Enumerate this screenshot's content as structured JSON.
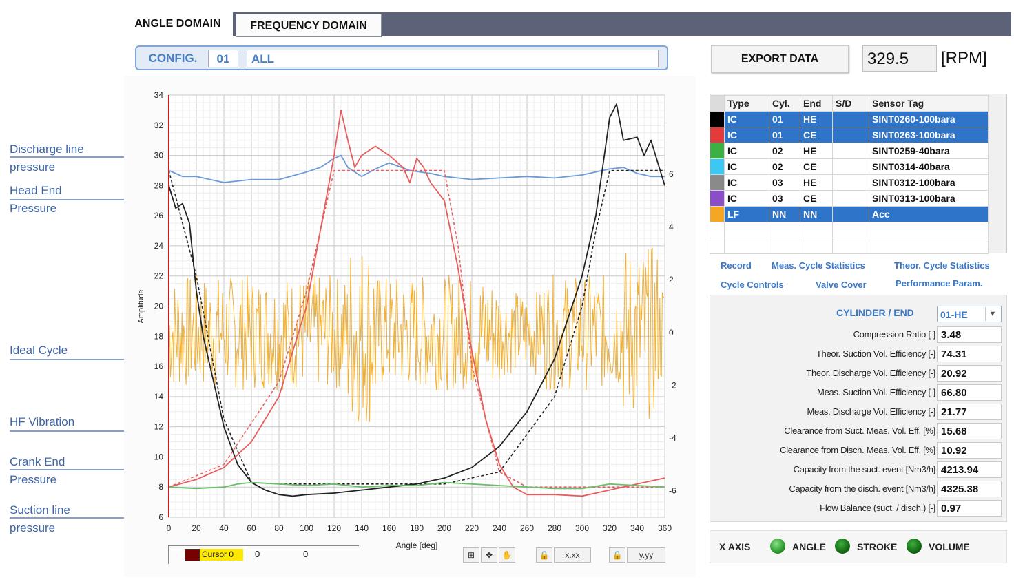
{
  "tabs": [
    {
      "label": "ANGLE DOMAIN"
    },
    {
      "label": "FREQUENCY DOMAIN"
    }
  ],
  "config": {
    "label": "CONFIG.",
    "number": "01",
    "selection": "ALL"
  },
  "export": {
    "label": "EXPORT DATA"
  },
  "rpm": {
    "value": "329.5",
    "unit": "[RPM]"
  },
  "annotations": [
    {
      "line1": "Discharge line",
      "line2": "pressure"
    },
    {
      "line1": "Head End",
      "line2": "Pressure"
    },
    {
      "line1": "Ideal Cycle",
      "line2": ""
    },
    {
      "line1": "HF Vibration",
      "line2": ""
    },
    {
      "line1": "Crank End",
      "line2": "Pressure"
    },
    {
      "line1": "Suction line",
      "line2": "pressure"
    }
  ],
  "sensor_table": {
    "headers": [
      "Type",
      "Cyl.",
      "End",
      "S/D",
      "Sensor Tag"
    ],
    "rows": [
      {
        "color": "#000000",
        "type": "IC",
        "cyl": "01",
        "end": "HE",
        "sd": "",
        "tag": "SINT0260-100bara",
        "selected": true
      },
      {
        "color": "#e23b3b",
        "type": "IC",
        "cyl": "01",
        "end": "CE",
        "sd": "",
        "tag": "SINT0263-100bara",
        "selected": true
      },
      {
        "color": "#3cb043",
        "type": "IC",
        "cyl": "02",
        "end": "HE",
        "sd": "",
        "tag": "SINT0259-40bara",
        "selected": false
      },
      {
        "color": "#3cc8f0",
        "type": "IC",
        "cyl": "02",
        "end": "CE",
        "sd": "",
        "tag": "SINT0314-40bara",
        "selected": false
      },
      {
        "color": "#8a8a8a",
        "type": "IC",
        "cyl": "03",
        "end": "HE",
        "sd": "",
        "tag": "SINT0312-100bara",
        "selected": false
      },
      {
        "color": "#8a4fc8",
        "type": "IC",
        "cyl": "03",
        "end": "CE",
        "sd": "",
        "tag": "SINT0313-100bara",
        "selected": false
      },
      {
        "color": "#f5a623",
        "type": "LF",
        "cyl": "NN",
        "end": "NN",
        "sd": "",
        "tag": "Acc",
        "selected": true
      }
    ]
  },
  "panel_tabs": {
    "record": "Record",
    "meas_stats": "Meas. Cycle Statistics",
    "theor_stats": "Theor. Cycle Statistics",
    "cycle_controls": "Cycle Controls",
    "valve_cover": "Valve Cover",
    "performance": "Performance Param."
  },
  "cylinder": {
    "label": "CYLINDER",
    "sep": "/ END",
    "value": "01-HE"
  },
  "stats": [
    {
      "label": "Compression Ratio [-]",
      "value": "3.48"
    },
    {
      "label": "Theor. Suction Vol. Efficiency [-]",
      "value": "74.31"
    },
    {
      "label": "Theor. Discharge Vol. Efficiency [-]",
      "value": "20.92"
    },
    {
      "label": "Meas. Suction Vol. Efficiency [-]",
      "value": "66.80"
    },
    {
      "label": "Meas. Discharge Vol. Efficiency [-]",
      "value": "21.77"
    },
    {
      "label": "Clearance from Suct. Meas. Vol. Eff. [%]",
      "value": "15.68"
    },
    {
      "label": "Clearance from Disch. Meas. Vol. Eff. [%]",
      "value": "10.92"
    },
    {
      "label": "Capacity from the suct. event [Nm3/h]",
      "value": "4213.94"
    },
    {
      "label": "Capacity from the disch. event [Nm3/h]",
      "value": "4325.38"
    },
    {
      "label": "Flow Balance (suct. / disch.) [-]",
      "value": "0.97"
    }
  ],
  "xaxis": {
    "label": "X AXIS",
    "options": [
      "ANGLE",
      "STROKE",
      "VOLUME"
    ]
  },
  "cursor": {
    "name": "Cursor 0",
    "x": "0",
    "y": "0"
  },
  "toolbar": {
    "t1": "⊞",
    "t2": "✥",
    "t3": "✋",
    "t4": "🔒",
    "t5": "x.xx",
    "t6": "y.yy"
  },
  "chart_data": {
    "type": "line",
    "xlabel": "Angle [deg]",
    "ylabel": "Amplitude",
    "xlim": [
      0,
      360
    ],
    "ylim": [
      6,
      34
    ],
    "y2lim": [
      -7,
      9
    ],
    "x_ticks": [
      0,
      20,
      40,
      60,
      80,
      100,
      120,
      140,
      160,
      180,
      200,
      220,
      240,
      260,
      280,
      300,
      320,
      340,
      360
    ],
    "y_ticks": [
      6,
      8,
      10,
      12,
      14,
      16,
      18,
      20,
      22,
      24,
      26,
      28,
      30,
      32,
      34
    ],
    "y2_ticks": [
      -6,
      -4,
      -2,
      0,
      2,
      4,
      6
    ],
    "grid": true,
    "series": [
      {
        "name": "Discharge line pressure",
        "color": "#6a9bd8",
        "dashed": false,
        "x": [
          0,
          10,
          20,
          30,
          40,
          60,
          80,
          100,
          110,
          120,
          125,
          130,
          140,
          150,
          160,
          175,
          190,
          200,
          220,
          240,
          260,
          280,
          300,
          320,
          330,
          340,
          350,
          360
        ],
        "y": [
          29.0,
          28.6,
          28.6,
          28.4,
          28.2,
          28.4,
          28.4,
          28.9,
          29.2,
          29.8,
          30.0,
          29.2,
          28.6,
          29.1,
          29.5,
          29.0,
          28.8,
          28.6,
          28.4,
          28.5,
          28.6,
          28.5,
          28.7,
          29.1,
          29.2,
          28.8,
          28.6,
          28.6
        ]
      },
      {
        "name": "Head End Pressure",
        "color": "#222222",
        "dashed": false,
        "x": [
          0,
          5,
          10,
          15,
          20,
          25,
          30,
          35,
          40,
          50,
          60,
          70,
          80,
          90,
          100,
          120,
          140,
          160,
          180,
          200,
          220,
          240,
          260,
          280,
          300,
          310,
          320,
          325,
          330,
          340,
          345,
          350,
          360
        ],
        "y": [
          28.0,
          26.5,
          26.8,
          25.5,
          21.0,
          18.0,
          16.0,
          14.0,
          12.0,
          9.5,
          8.3,
          7.8,
          7.5,
          7.4,
          7.5,
          7.6,
          7.8,
          8.0,
          8.2,
          8.6,
          9.3,
          10.7,
          13.0,
          16.5,
          22.0,
          26.0,
          32.5,
          33.4,
          31.0,
          31.2,
          30.0,
          31.0,
          28.0
        ]
      },
      {
        "name": "Head End Ideal Cycle",
        "color": "#222222",
        "dashed": true,
        "x": [
          0,
          20,
          40,
          60,
          80,
          100,
          200,
          240,
          280,
          300,
          310,
          320,
          360
        ],
        "y": [
          29.0,
          22.0,
          12.5,
          8.3,
          8.2,
          8.2,
          8.2,
          9.0,
          14.0,
          20.0,
          25.0,
          29.0,
          29.0
        ]
      },
      {
        "name": "Crank End Pressure",
        "color": "#e85c5c",
        "dashed": false,
        "x": [
          0,
          20,
          40,
          60,
          80,
          100,
          110,
          120,
          125,
          130,
          135,
          140,
          150,
          160,
          170,
          175,
          180,
          185,
          190,
          200,
          210,
          220,
          230,
          240,
          250,
          260,
          280,
          300,
          320,
          340,
          360
        ],
        "y": [
          8.0,
          8.5,
          9.3,
          11.0,
          14.0,
          20.0,
          25.0,
          30.0,
          33.0,
          31.0,
          29.2,
          30.0,
          30.6,
          30.0,
          29.2,
          28.2,
          29.8,
          29.2,
          28.2,
          27.0,
          22.5,
          17.0,
          12.5,
          9.5,
          8.0,
          7.5,
          7.5,
          7.4,
          7.8,
          8.2,
          8.6
        ]
      },
      {
        "name": "Crank End Ideal Cycle",
        "color": "#e85c5c",
        "dashed": true,
        "x": [
          0,
          40,
          80,
          100,
          120,
          200,
          210,
          220,
          240,
          260,
          360
        ],
        "y": [
          8.0,
          9.5,
          15.0,
          21.0,
          29.0,
          29.0,
          24.0,
          16.0,
          9.0,
          8.0,
          8.0
        ]
      },
      {
        "name": "Suction line pressure",
        "color": "#6bbf6b",
        "dashed": false,
        "x": [
          0,
          20,
          40,
          50,
          60,
          80,
          100,
          120,
          140,
          160,
          180,
          200,
          220,
          240,
          260,
          280,
          300,
          320,
          340,
          360
        ],
        "y": [
          8.0,
          7.9,
          8.0,
          8.2,
          8.3,
          8.2,
          8.1,
          8.2,
          8.0,
          8.1,
          8.1,
          8.3,
          8.2,
          8.1,
          8.0,
          7.9,
          7.9,
          8.2,
          8.1,
          8.0
        ]
      }
    ],
    "secondary_series": [
      {
        "name": "HF Vibration",
        "color": "#f0a91e",
        "axis": "y2",
        "description": "noisy oscillation around 0 with band approximately -3 to +3; bursts near 135-145 deg and 340-350 deg",
        "amplitude_band": [
          -3,
          3
        ]
      }
    ]
  }
}
